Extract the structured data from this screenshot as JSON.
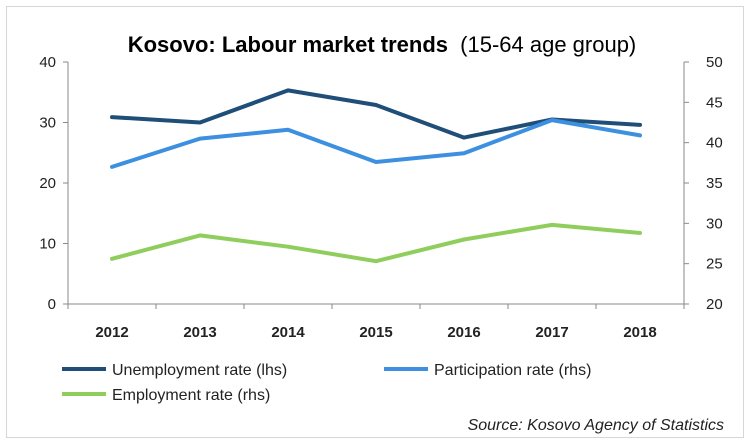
{
  "chart_data": {
    "type": "line",
    "title": "Kosovo: Labour market trends",
    "subtitle": "(15-64 age group)",
    "categories": [
      "2012",
      "2013",
      "2014",
      "2015",
      "2016",
      "2017",
      "2018"
    ],
    "y_left": {
      "min": 0,
      "max": 40,
      "ticks": [
        "0",
        "10",
        "20",
        "30",
        "40"
      ]
    },
    "y_right": {
      "min": 20,
      "max": 50,
      "ticks": [
        "20",
        "25",
        "30",
        "35",
        "40",
        "45",
        "50"
      ]
    },
    "series": [
      {
        "name": "Unemployment rate (lhs)",
        "axis": "left",
        "color": "#1f4e79",
        "values": [
          30.9,
          30.0,
          35.3,
          32.9,
          27.5,
          30.5,
          29.6
        ]
      },
      {
        "name": "Participation rate (rhs)",
        "axis": "right",
        "color": "#3d8fe0",
        "values": [
          37.0,
          40.5,
          41.6,
          37.6,
          38.7,
          42.8,
          40.9
        ]
      },
      {
        "name": "Employment rate (rhs)",
        "axis": "right",
        "color": "#8fce5c",
        "values": [
          25.6,
          28.5,
          27.1,
          25.3,
          28.0,
          29.8,
          28.8
        ]
      }
    ],
    "grid": false,
    "legend_position": "bottom"
  },
  "source": "Source: Kosovo Agency of Statistics"
}
